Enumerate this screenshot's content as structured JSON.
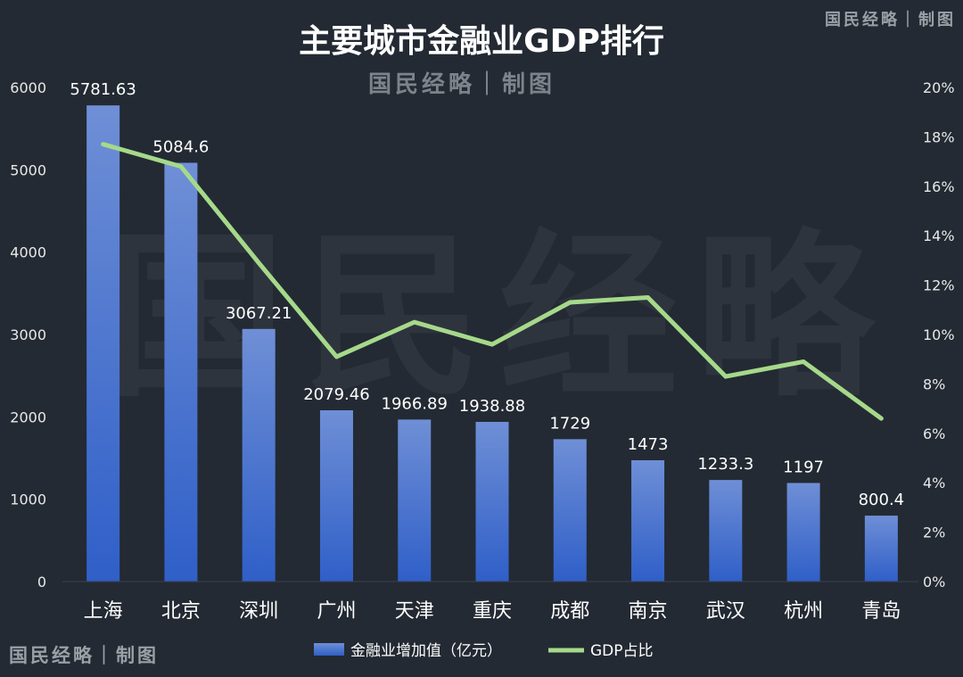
{
  "credits": {
    "top_right": "国民经略｜制图",
    "under_title": "国民经略｜制图",
    "bottom_left": "国民经略｜制图",
    "watermark": "国民经略"
  },
  "colors": {
    "background": "#232a33",
    "bar_top": "#6f8fd6",
    "bar_bottom": "#2f5fc8",
    "line": "#a6d98a",
    "text": "#ffffff",
    "axis_text": "#e8e8e8"
  },
  "chart_data": {
    "type": "bar",
    "title": "主要城市金融业GDP排行",
    "categories": [
      "上海",
      "北京",
      "深圳",
      "广州",
      "天津",
      "重庆",
      "成都",
      "南京",
      "武汉",
      "杭州",
      "青岛"
    ],
    "series": [
      {
        "name": "金融业增加值（亿元）",
        "type": "bar",
        "axis": "left",
        "values": [
          5781.63,
          5084.6,
          3067.21,
          2079.46,
          1966.89,
          1938.88,
          1729,
          1473,
          1233.3,
          1197,
          800.4
        ],
        "labels": [
          "5781.63",
          "5084.6",
          "3067.21",
          "2079.46",
          "1966.89",
          "1938.88",
          "1729",
          "1473",
          "1233.3",
          "1197",
          "800.4"
        ]
      },
      {
        "name": "GDP占比",
        "type": "line",
        "axis": "right",
        "values": [
          17.7,
          16.8,
          12.9,
          9.1,
          10.5,
          9.6,
          11.3,
          11.5,
          8.3,
          8.9,
          6.6
        ]
      }
    ],
    "y_left": {
      "min": 0,
      "max": 6000,
      "ticks": [
        "0",
        "1000",
        "2000",
        "3000",
        "4000",
        "5000",
        "6000"
      ]
    },
    "y_right": {
      "min": 0,
      "max": 20,
      "ticks": [
        "0%",
        "2%",
        "4%",
        "6%",
        "8%",
        "10%",
        "12%",
        "14%",
        "16%",
        "18%",
        "20%"
      ]
    },
    "grid": false,
    "legend": "bottom"
  }
}
